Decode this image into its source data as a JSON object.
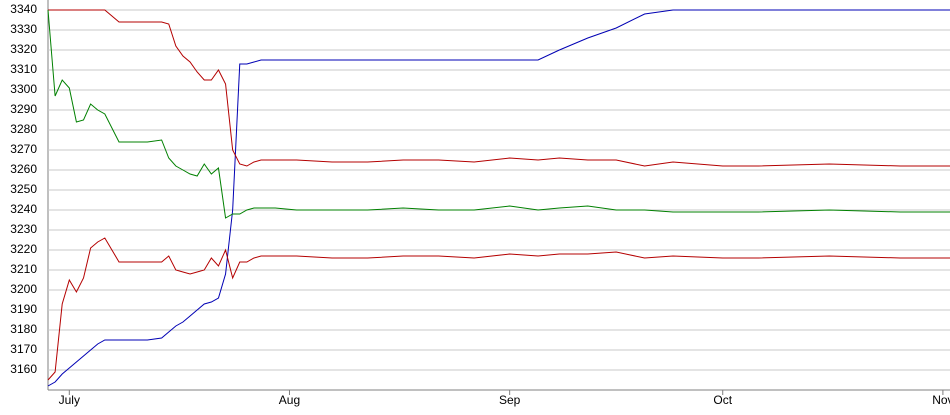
{
  "chart_data": {
    "type": "line",
    "x": [
      0,
      1,
      2,
      3,
      4,
      5,
      6,
      7,
      8,
      10,
      12,
      14,
      16,
      17,
      18,
      19,
      20,
      21,
      22,
      23,
      24,
      25,
      26,
      27,
      28,
      29,
      30,
      32,
      35,
      40,
      45,
      50,
      55,
      60,
      65,
      69,
      72,
      76,
      80,
      84,
      88,
      95,
      100,
      110,
      120,
      127
    ],
    "series": [
      {
        "color": "#0000b4",
        "values": [
          3152,
          3154,
          3158,
          3161,
          3164,
          3167,
          3170,
          3173,
          3175,
          3175,
          3175,
          3175,
          3176,
          3179,
          3182,
          3184,
          3187,
          3190,
          3193,
          3194,
          3196,
          3208,
          3240,
          3313,
          3313,
          3314,
          3315,
          3315,
          3315,
          3315,
          3315,
          3315,
          3315,
          3315,
          3315,
          3315,
          3320,
          3326,
          3331,
          3338,
          3340,
          3340,
          3340,
          3340,
          3340,
          3340
        ]
      },
      {
        "color": "#b40000",
        "values": [
          3340,
          3340,
          3340,
          3340,
          3340,
          3340,
          3340,
          3340,
          3340,
          3334,
          3334,
          3334,
          3334,
          3333,
          3322,
          3317,
          3314,
          3309,
          3305,
          3305,
          3310,
          3303,
          3270,
          3263,
          3262,
          3264,
          3265,
          3265,
          3265,
          3264,
          3264,
          3265,
          3265,
          3264,
          3266,
          3265,
          3266,
          3265,
          3265,
          3262,
          3264,
          3262,
          3262,
          3263,
          3262,
          3262
        ]
      },
      {
        "color": "#008000",
        "values": [
          3340,
          3297,
          3305,
          3301,
          3284,
          3285,
          3293,
          3290,
          3288,
          3274,
          3274,
          3274,
          3275,
          3266,
          3262,
          3260,
          3258,
          3257,
          3263,
          3258,
          3261,
          3236,
          3238,
          3238,
          3240,
          3241,
          3241,
          3241,
          3240,
          3240,
          3240,
          3241,
          3240,
          3240,
          3242,
          3240,
          3241,
          3242,
          3240,
          3240,
          3239,
          3239,
          3239,
          3240,
          3239,
          3239
        ]
      },
      {
        "color": "#b40000",
        "values": [
          3155,
          3159,
          3193,
          3205,
          3199,
          3206,
          3221,
          3224,
          3226,
          3214,
          3214,
          3214,
          3214,
          3217,
          3210,
          3209,
          3208,
          3209,
          3210,
          3216,
          3212,
          3220,
          3206,
          3214,
          3214,
          3216,
          3217,
          3217,
          3217,
          3216,
          3216,
          3217,
          3217,
          3216,
          3218,
          3217,
          3218,
          3218,
          3219,
          3216,
          3217,
          3216,
          3216,
          3217,
          3216,
          3216
        ]
      }
    ],
    "xlim": [
      0,
      127
    ],
    "xticks": [
      {
        "value": 3,
        "label": "July"
      },
      {
        "value": 34,
        "label": "Aug"
      },
      {
        "value": 65,
        "label": "Sep"
      },
      {
        "value": 95,
        "label": "Oct"
      },
      {
        "value": 126,
        "label": "Nov"
      }
    ],
    "ylim": [
      3150,
      3345
    ],
    "yticks": [
      3160,
      3170,
      3180,
      3190,
      3200,
      3210,
      3220,
      3230,
      3240,
      3250,
      3260,
      3270,
      3280,
      3290,
      3300,
      3310,
      3320,
      3330,
      3340
    ],
    "grid": true
  }
}
